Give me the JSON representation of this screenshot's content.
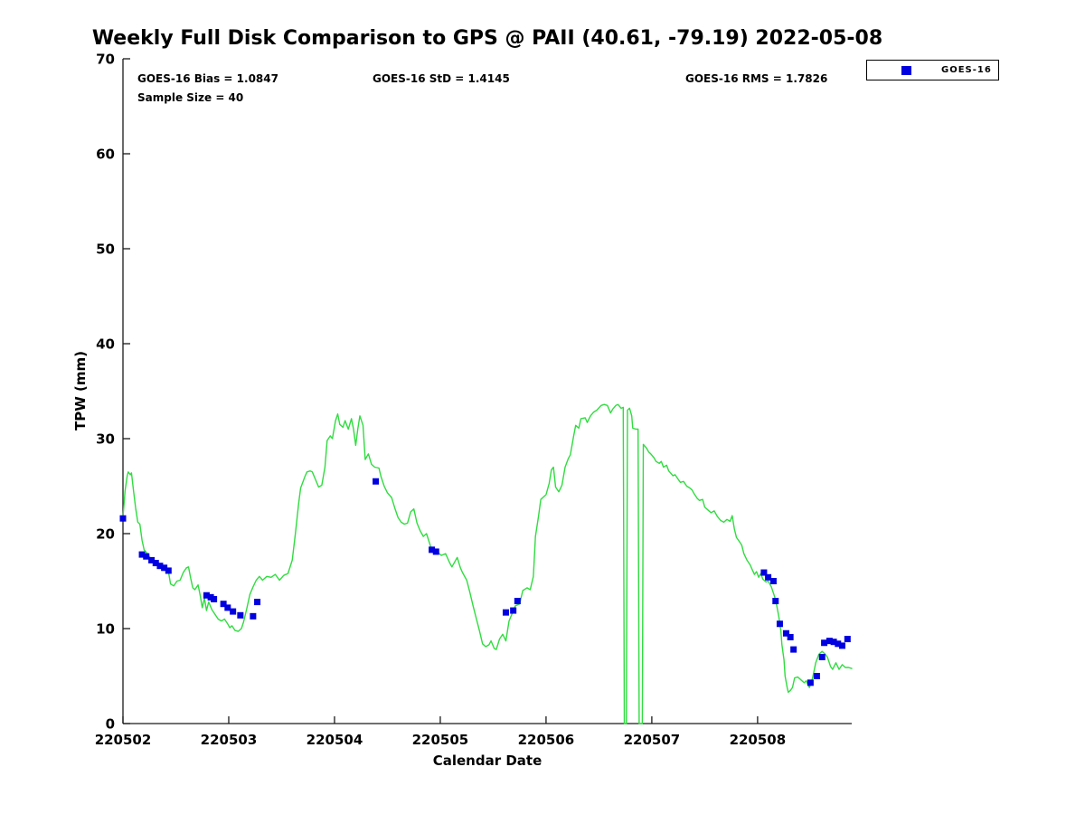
{
  "title": "Weekly Full Disk Comparison to GPS @ PAII (40.61, -79.19) 2022-05-08",
  "annotations": {
    "bias": "GOES-16 Bias = 1.0847",
    "std": "GOES-16 StD = 1.4145",
    "rms": "GOES-16 RMS = 1.7826",
    "sample_size": "Sample Size = 40"
  },
  "legend": {
    "label": "GOES-16",
    "marker": "filled-square",
    "position": "top-right-outside-plot"
  },
  "colors": {
    "gps_line": "#30dc40",
    "goes16_marker": "#0000e0",
    "axis": "#1a1a1a",
    "text": "#000000",
    "background": "#ffffff"
  },
  "chart_data": {
    "type": "line",
    "title": "Weekly Full Disk Comparison to GPS @ PAII (40.61, -79.19) 2022-05-08",
    "xlabel": "Calendar Date",
    "ylabel": "TPW (mm)",
    "x_axis": {
      "unit": "days since 220502",
      "range": [
        0,
        6.89
      ],
      "tick_positions": [
        0,
        1,
        2,
        3,
        4,
        5,
        6
      ],
      "tick_labels": [
        "220502",
        "220503",
        "220504",
        "220505",
        "220506",
        "220507",
        "220508"
      ]
    },
    "y_axis": {
      "range": [
        0,
        70
      ],
      "ticks": [
        0,
        10,
        20,
        30,
        40,
        50,
        60,
        70
      ]
    },
    "grid": false,
    "legend_position": "top-right",
    "series": [
      {
        "name": "GPS",
        "type": "line",
        "color": "#30dc40",
        "points": [
          [
            0.0,
            21.7
          ],
          [
            0.02,
            24.5
          ],
          [
            0.04,
            26.1
          ],
          [
            0.05,
            26.5
          ],
          [
            0.07,
            26.2
          ],
          [
            0.08,
            26.4
          ],
          [
            0.1,
            24.5
          ],
          [
            0.12,
            22.7
          ],
          [
            0.14,
            21.2
          ],
          [
            0.16,
            21.0
          ],
          [
            0.18,
            19.3
          ],
          [
            0.2,
            18.3
          ],
          [
            0.23,
            17.9
          ],
          [
            0.26,
            17.4
          ],
          [
            0.29,
            17.1
          ],
          [
            0.32,
            16.8
          ],
          [
            0.35,
            16.6
          ],
          [
            0.38,
            16.4
          ],
          [
            0.41,
            16.2
          ],
          [
            0.43,
            16.0
          ],
          [
            0.45,
            14.7
          ],
          [
            0.48,
            14.5
          ],
          [
            0.51,
            15.0
          ],
          [
            0.54,
            15.1
          ],
          [
            0.57,
            15.9
          ],
          [
            0.6,
            16.4
          ],
          [
            0.62,
            16.5
          ],
          [
            0.64,
            15.3
          ],
          [
            0.66,
            14.3
          ],
          [
            0.68,
            14.1
          ],
          [
            0.71,
            14.6
          ],
          [
            0.73,
            13.5
          ],
          [
            0.75,
            12.2
          ],
          [
            0.77,
            13.2
          ],
          [
            0.79,
            11.9
          ],
          [
            0.81,
            12.8
          ],
          [
            0.84,
            12.0
          ],
          [
            0.87,
            11.5
          ],
          [
            0.9,
            11.0
          ],
          [
            0.93,
            10.8
          ],
          [
            0.96,
            11.0
          ],
          [
            0.99,
            10.5
          ],
          [
            1.01,
            10.1
          ],
          [
            1.03,
            10.3
          ],
          [
            1.06,
            9.8
          ],
          [
            1.09,
            9.7
          ],
          [
            1.12,
            10.0
          ],
          [
            1.14,
            10.7
          ],
          [
            1.17,
            12.1
          ],
          [
            1.2,
            13.6
          ],
          [
            1.23,
            14.4
          ],
          [
            1.26,
            15.1
          ],
          [
            1.29,
            15.5
          ],
          [
            1.32,
            15.1
          ],
          [
            1.36,
            15.5
          ],
          [
            1.4,
            15.4
          ],
          [
            1.44,
            15.7
          ],
          [
            1.48,
            15.1
          ],
          [
            1.52,
            15.6
          ],
          [
            1.56,
            15.8
          ],
          [
            1.6,
            17.2
          ],
          [
            1.63,
            20.0
          ],
          [
            1.66,
            23.1
          ],
          [
            1.68,
            24.8
          ],
          [
            1.72,
            26.0
          ],
          [
            1.74,
            26.5
          ],
          [
            1.77,
            26.6
          ],
          [
            1.79,
            26.5
          ],
          [
            1.82,
            25.7
          ],
          [
            1.85,
            24.9
          ],
          [
            1.88,
            25.1
          ],
          [
            1.91,
            27.0
          ],
          [
            1.93,
            29.8
          ],
          [
            1.96,
            30.3
          ],
          [
            1.98,
            30.0
          ],
          [
            2.01,
            31.9
          ],
          [
            2.03,
            32.6
          ],
          [
            2.05,
            31.5
          ],
          [
            2.08,
            31.2
          ],
          [
            2.1,
            31.9
          ],
          [
            2.13,
            31.0
          ],
          [
            2.16,
            32.1
          ],
          [
            2.18,
            31.0
          ],
          [
            2.2,
            29.3
          ],
          [
            2.22,
            31.0
          ],
          [
            2.24,
            32.4
          ],
          [
            2.27,
            31.4
          ],
          [
            2.29,
            27.8
          ],
          [
            2.32,
            28.4
          ],
          [
            2.35,
            27.3
          ],
          [
            2.38,
            27.0
          ],
          [
            2.42,
            26.9
          ],
          [
            2.44,
            26.0
          ],
          [
            2.47,
            25.0
          ],
          [
            2.5,
            24.3
          ],
          [
            2.54,
            23.8
          ],
          [
            2.57,
            22.7
          ],
          [
            2.6,
            21.7
          ],
          [
            2.63,
            21.2
          ],
          [
            2.66,
            21.0
          ],
          [
            2.69,
            21.1
          ],
          [
            2.72,
            22.3
          ],
          [
            2.75,
            22.6
          ],
          [
            2.78,
            21.1
          ],
          [
            2.81,
            20.3
          ],
          [
            2.84,
            19.7
          ],
          [
            2.87,
            20.0
          ],
          [
            2.91,
            18.6
          ],
          [
            2.94,
            18.3
          ],
          [
            2.98,
            18.0
          ],
          [
            3.01,
            17.7
          ],
          [
            3.05,
            17.9
          ],
          [
            3.09,
            16.9
          ],
          [
            3.11,
            16.5
          ],
          [
            3.16,
            17.5
          ],
          [
            3.19,
            16.4
          ],
          [
            3.21,
            15.9
          ],
          [
            3.25,
            15.1
          ],
          [
            3.28,
            13.8
          ],
          [
            3.31,
            12.4
          ],
          [
            3.34,
            11.1
          ],
          [
            3.37,
            9.8
          ],
          [
            3.4,
            8.4
          ],
          [
            3.43,
            8.1
          ],
          [
            3.46,
            8.3
          ],
          [
            3.48,
            8.7
          ],
          [
            3.51,
            7.9
          ],
          [
            3.53,
            7.8
          ],
          [
            3.56,
            8.9
          ],
          [
            3.59,
            9.4
          ],
          [
            3.62,
            8.7
          ],
          [
            3.65,
            10.8
          ],
          [
            3.68,
            11.6
          ],
          [
            3.71,
            12.4
          ],
          [
            3.75,
            12.6
          ],
          [
            3.78,
            14.0
          ],
          [
            3.82,
            14.3
          ],
          [
            3.85,
            14.1
          ],
          [
            3.88,
            15.5
          ],
          [
            3.9,
            19.7
          ],
          [
            3.93,
            21.9
          ],
          [
            3.95,
            23.6
          ],
          [
            3.98,
            23.9
          ],
          [
            4.0,
            24.1
          ],
          [
            4.03,
            25.3
          ],
          [
            4.05,
            26.7
          ],
          [
            4.07,
            27.0
          ],
          [
            4.09,
            24.9
          ],
          [
            4.12,
            24.4
          ],
          [
            4.15,
            25.1
          ],
          [
            4.18,
            27.0
          ],
          [
            4.21,
            27.9
          ],
          [
            4.23,
            28.3
          ],
          [
            4.26,
            30.2
          ],
          [
            4.28,
            31.4
          ],
          [
            4.31,
            31.1
          ],
          [
            4.33,
            32.1
          ],
          [
            4.37,
            32.2
          ],
          [
            4.39,
            31.7
          ],
          [
            4.42,
            32.4
          ],
          [
            4.45,
            32.8
          ],
          [
            4.48,
            33.0
          ],
          [
            4.52,
            33.5
          ],
          [
            4.55,
            33.6
          ],
          [
            4.58,
            33.5
          ],
          [
            4.61,
            32.7
          ],
          [
            4.63,
            33.1
          ],
          [
            4.66,
            33.5
          ],
          [
            4.68,
            33.6
          ],
          [
            4.71,
            33.2
          ],
          [
            4.73,
            33.3
          ],
          [
            4.74,
            0.0
          ],
          [
            4.76,
            0.0
          ],
          [
            4.77,
            33.0
          ],
          [
            4.79,
            33.2
          ],
          [
            4.81,
            32.4
          ],
          [
            4.82,
            31.1
          ],
          [
            4.85,
            31.0
          ],
          [
            4.87,
            31.0
          ],
          [
            4.88,
            0.0
          ],
          [
            4.91,
            0.0
          ],
          [
            4.92,
            29.4
          ],
          [
            4.95,
            29.0
          ],
          [
            4.97,
            28.6
          ],
          [
            4.99,
            28.4
          ],
          [
            5.02,
            28.0
          ],
          [
            5.04,
            27.6
          ],
          [
            5.07,
            27.4
          ],
          [
            5.09,
            27.6
          ],
          [
            5.11,
            27.0
          ],
          [
            5.14,
            27.2
          ],
          [
            5.16,
            26.6
          ],
          [
            5.2,
            26.1
          ],
          [
            5.22,
            26.2
          ],
          [
            5.25,
            25.7
          ],
          [
            5.27,
            25.4
          ],
          [
            5.3,
            25.5
          ],
          [
            5.33,
            25.0
          ],
          [
            5.36,
            24.8
          ],
          [
            5.38,
            24.6
          ],
          [
            5.4,
            24.2
          ],
          [
            5.43,
            23.7
          ],
          [
            5.45,
            23.5
          ],
          [
            5.48,
            23.6
          ],
          [
            5.5,
            22.8
          ],
          [
            5.53,
            22.5
          ],
          [
            5.56,
            22.2
          ],
          [
            5.59,
            22.4
          ],
          [
            5.62,
            21.8
          ],
          [
            5.65,
            21.4
          ],
          [
            5.68,
            21.2
          ],
          [
            5.71,
            21.5
          ],
          [
            5.74,
            21.3
          ],
          [
            5.76,
            21.9
          ],
          [
            5.78,
            20.5
          ],
          [
            5.8,
            19.6
          ],
          [
            5.82,
            19.3
          ],
          [
            5.85,
            18.8
          ],
          [
            5.87,
            17.9
          ],
          [
            5.9,
            17.2
          ],
          [
            5.93,
            16.7
          ],
          [
            5.95,
            16.2
          ],
          [
            5.97,
            15.7
          ],
          [
            5.99,
            16.0
          ],
          [
            6.01,
            15.4
          ],
          [
            6.03,
            15.8
          ],
          [
            6.05,
            15.2
          ],
          [
            6.08,
            14.9
          ],
          [
            6.1,
            15.0
          ],
          [
            6.13,
            14.4
          ],
          [
            6.16,
            13.4
          ],
          [
            6.18,
            12.5
          ],
          [
            6.2,
            11.3
          ],
          [
            6.22,
            9.8
          ],
          [
            6.23,
            8.3
          ],
          [
            6.25,
            6.7
          ],
          [
            6.26,
            5.0
          ],
          [
            6.28,
            3.8
          ],
          [
            6.29,
            3.3
          ],
          [
            6.31,
            3.5
          ],
          [
            6.33,
            3.8
          ],
          [
            6.35,
            4.8
          ],
          [
            6.38,
            4.9
          ],
          [
            6.41,
            4.6
          ],
          [
            6.44,
            4.3
          ],
          [
            6.46,
            4.5
          ],
          [
            6.49,
            3.8
          ],
          [
            6.52,
            4.8
          ],
          [
            6.55,
            6.4
          ],
          [
            6.58,
            7.3
          ],
          [
            6.61,
            7.6
          ],
          [
            6.64,
            7.3
          ],
          [
            6.66,
            7.0
          ],
          [
            6.69,
            6.0
          ],
          [
            6.71,
            5.7
          ],
          [
            6.74,
            6.4
          ],
          [
            6.77,
            5.7
          ],
          [
            6.8,
            6.2
          ],
          [
            6.83,
            5.9
          ],
          [
            6.86,
            5.9
          ],
          [
            6.89,
            5.8
          ]
        ]
      },
      {
        "name": "GOES-16",
        "type": "scatter",
        "marker": "square",
        "marker_size": 7,
        "color": "#0000e0",
        "points": [
          [
            0.0,
            21.6
          ],
          [
            0.18,
            17.8
          ],
          [
            0.22,
            17.6
          ],
          [
            0.27,
            17.2
          ],
          [
            0.31,
            16.9
          ],
          [
            0.35,
            16.6
          ],
          [
            0.39,
            16.4
          ],
          [
            0.43,
            16.1
          ],
          [
            0.79,
            13.5
          ],
          [
            0.83,
            13.3
          ],
          [
            0.86,
            13.1
          ],
          [
            0.95,
            12.6
          ],
          [
            0.99,
            12.2
          ],
          [
            1.04,
            11.8
          ],
          [
            1.11,
            11.4
          ],
          [
            1.23,
            11.3
          ],
          [
            1.27,
            12.8
          ],
          [
            2.39,
            25.5
          ],
          [
            2.92,
            18.3
          ],
          [
            2.96,
            18.1
          ],
          [
            3.62,
            11.7
          ],
          [
            3.69,
            11.9
          ],
          [
            3.73,
            12.9
          ],
          [
            6.06,
            15.9
          ],
          [
            6.1,
            15.4
          ],
          [
            6.15,
            15.0
          ],
          [
            6.17,
            12.9
          ],
          [
            6.21,
            10.5
          ],
          [
            6.27,
            9.5
          ],
          [
            6.31,
            9.1
          ],
          [
            6.34,
            7.8
          ],
          [
            6.5,
            4.3
          ],
          [
            6.56,
            5.0
          ],
          [
            6.61,
            7.0
          ],
          [
            6.63,
            8.5
          ],
          [
            6.68,
            8.7
          ],
          [
            6.72,
            8.6
          ],
          [
            6.76,
            8.4
          ],
          [
            6.8,
            8.2
          ],
          [
            6.85,
            8.9
          ]
        ]
      }
    ]
  }
}
